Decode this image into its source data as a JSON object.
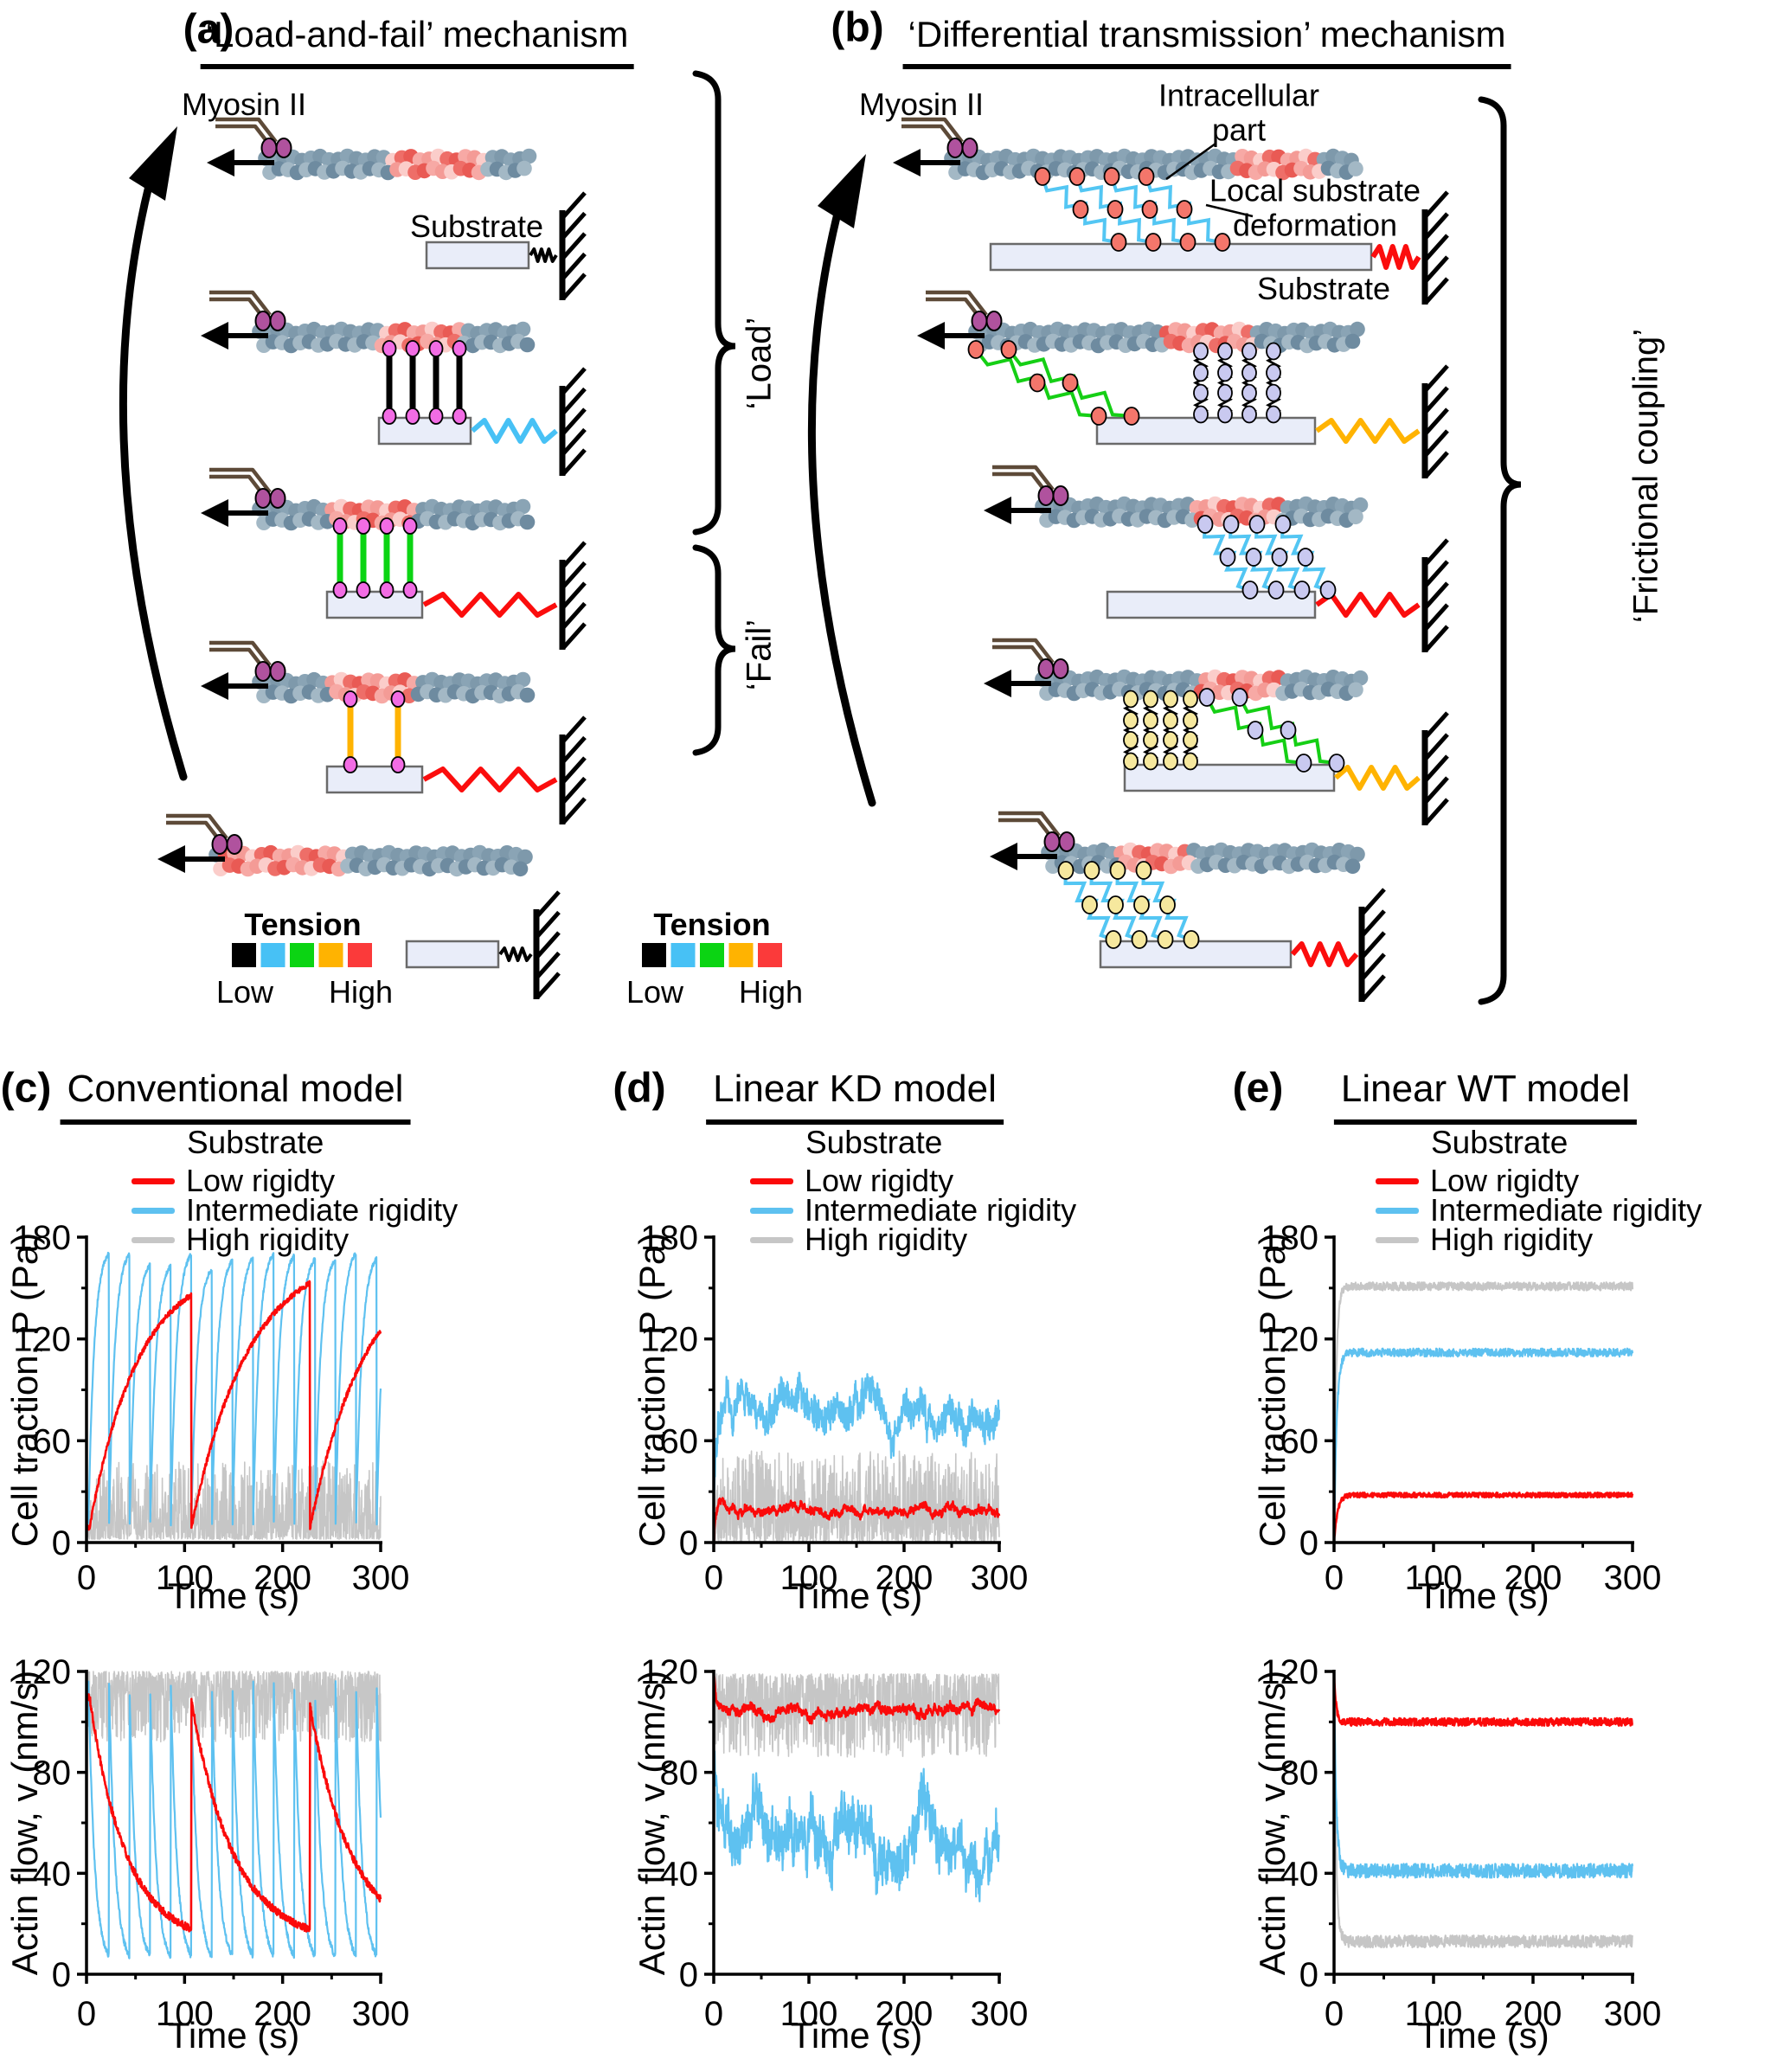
{
  "diagram": {
    "panel_a": {
      "label": "(a)",
      "title": "‘Load-and-fail’ mechanism",
      "myosin_label": "Myosin II",
      "substrate_label": "Substrate",
      "load_brace_label": "‘Load’",
      "fail_brace_label": "‘Fail’",
      "tension_legend": {
        "title": "Tension",
        "low_label": "Low",
        "high_label": "High",
        "colors": [
          "#000000",
          "#47c1f5",
          "#0bd413",
          "#ffb301",
          "#fb3a3a"
        ]
      },
      "rows": [
        {
          "name": "unloaded-substrate",
          "linker": null,
          "spring_color": "#000000",
          "spring_style": "short",
          "red_zone": [
            0.48,
            0.83
          ]
        },
        {
          "name": "engaged-low-tension",
          "linker": {
            "color": "#000000",
            "count": 4,
            "ball_color": "#f26ce4"
          },
          "spring_color": "#47c1f5",
          "spring_style": "long",
          "red_zone": [
            0.45,
            0.75
          ]
        },
        {
          "name": "loaded-high-tension",
          "linker": {
            "color": "#0bd413",
            "count": 4,
            "ball_color": "#f26ce4"
          },
          "spring_color": "#fb0d0d",
          "spring_style": "long",
          "red_zone": [
            0.26,
            0.58
          ]
        },
        {
          "name": "failing-links",
          "linker": {
            "color": "#ffb301",
            "count": 2,
            "ball_color": "#f26ce4"
          },
          "spring_color": "#fb0d0d",
          "spring_style": "long",
          "red_zone": [
            0.26,
            0.58
          ]
        },
        {
          "name": "detached-reset",
          "linker": null,
          "spring_color": "#000000",
          "spring_style": "short",
          "red_zone": [
            0.01,
            0.42
          ]
        }
      ]
    },
    "panel_b": {
      "label": "(b)",
      "title": "‘Differential transmission’ mechanism",
      "myosin_label": "Myosin II",
      "intracellular_label": "Intracellular part",
      "deformation_label": "Local substrate deformation",
      "substrate_label": "Substrate",
      "friction_brace_label": "‘Frictional coupling’",
      "tension_legend": {
        "title": "Tension",
        "low_label": "Low",
        "high_label": "High",
        "colors": [
          "#000000",
          "#47c1f5",
          "#0bd413",
          "#ffb301",
          "#fb3a3a"
        ]
      },
      "rows": [
        {
          "name": "row-1-local-deformation",
          "chains": [
            {
              "type": "zigzag",
              "color": "#53c6f3",
              "ball_color": "#f4766b"
            }
          ],
          "spring_color": "#fb0d0d",
          "red_zone": [
            0.7,
            0.91
          ]
        },
        {
          "name": "row-2-mixed-green-coil",
          "chains": [
            {
              "type": "zigzag",
              "color": "#15cf15",
              "ball_color": "#f4766b"
            },
            {
              "type": "coil",
              "color": "#000000",
              "ball_color": "#c9c9f0"
            }
          ],
          "spring_color": "#ffb301",
          "red_zone": [
            0.49,
            0.73
          ]
        },
        {
          "name": "row-3-blue-chains",
          "chains": [
            {
              "type": "zigzag",
              "color": "#53c6f3",
              "ball_color": "#c9c9f0"
            }
          ],
          "spring_color": "#fb0d0d",
          "red_zone": [
            0.47,
            0.75
          ]
        },
        {
          "name": "row-4-mixed-coil-green",
          "chains": [
            {
              "type": "coil",
              "color": "#000000",
              "ball_color": "#f6e89e"
            },
            {
              "type": "zigzag",
              "color": "#15cf15",
              "ball_color": "#c9c9f0"
            }
          ],
          "spring_color": "#ffb301",
          "red_zone": [
            0.49,
            0.75
          ]
        },
        {
          "name": "row-5-relaxed",
          "chains": [
            {
              "type": "zigzag",
              "color": "#53c6f3",
              "ball_color": "#f6e89e"
            }
          ],
          "spring_color": "#fb0d0d",
          "red_zone": [
            0.22,
            0.46
          ]
        }
      ]
    }
  },
  "charts": {
    "panel_c": {
      "label": "(c)",
      "title": "Conventional model",
      "legend": {
        "title": "Substrate",
        "entries": [
          {
            "label": "Low rigidty",
            "color": "#fb0a0a"
          },
          {
            "label": "Intermediate rigidity",
            "color": "#5ec1f0"
          },
          {
            "label": "High rigidity",
            "color": "#c6c6c6"
          }
        ]
      }
    },
    "panel_d": {
      "label": "(d)",
      "title": "Linear KD model",
      "legend": {
        "title": "Substrate",
        "entries": [
          {
            "label": "Low rigidty",
            "color": "#fb0a0a"
          },
          {
            "label": "Intermediate rigidity",
            "color": "#5ec1f0"
          },
          {
            "label": "High rigidity",
            "color": "#c6c6c6"
          }
        ]
      }
    },
    "panel_e": {
      "label": "(e)",
      "title": "Linear WT model",
      "legend": {
        "title": "Substrate",
        "entries": [
          {
            "label": "Low rigidty",
            "color": "#fb0a0a"
          },
          {
            "label": "Intermediate rigidity",
            "color": "#5ec1f0"
          },
          {
            "label": "High rigidity",
            "color": "#c6c6c6"
          }
        ]
      }
    }
  },
  "chart_data": [
    {
      "id": "c-traction",
      "panel": "c",
      "slot": "traction",
      "type": "line",
      "xlabel": "Time (s)",
      "ylabel": "Cell traction, P (Pa)",
      "xlim": [
        0,
        300
      ],
      "ylim": [
        0,
        180
      ],
      "xticks": [
        0,
        100,
        200,
        300
      ],
      "yticks": [
        0,
        60,
        120,
        180
      ],
      "xminor": [
        50,
        150,
        250
      ],
      "yminor": [
        30,
        90,
        150
      ],
      "series": [
        {
          "name": "High rigidity",
          "color": "#c6c6c6",
          "width": 1.6,
          "seed": 101,
          "pattern": "spiky",
          "params": {
            "base": 2,
            "amp": 46,
            "pow": 2.2,
            "dir": "up",
            "ramp": 4
          },
          "summary": "dense noisy spikes between ~0 and ~48 Pa for all 300 s"
        },
        {
          "name": "Intermediate rigidity",
          "color": "#5ec1f0",
          "width": 2.2,
          "seed": 102,
          "pattern": "sawtooth",
          "params": {
            "mode": "rise",
            "breaks": [
              2
            ],
            "period": 21,
            "peak": 166,
            "jit": 6,
            "valley": 11,
            "k": 3.6,
            "hf": 1.3
          },
          "summary": "load-and-fail cycles ~21 s period, concave rise from ~11 to peaks ~160-168 Pa then abrupt drop"
        },
        {
          "name": "Low rigidty",
          "color": "#fb0a0a",
          "width": 2.6,
          "seed": 103,
          "pattern": "sawtooth",
          "params": {
            "mode": "rise",
            "breaks": [
              3,
              107,
              228,
              349
            ],
            "period": 116,
            "peaks": [
              146,
              153,
              152
            ],
            "valley": 9,
            "k": 2.1,
            "hf": 1.5
          },
          "summary": "slow load-and-fail cycles, drops at ~107 s and ~228 s, peaks ~145-152 Pa, ends ~125 Pa at 300 s"
        }
      ]
    },
    {
      "id": "c-flow",
      "panel": "c",
      "slot": "flow",
      "type": "line",
      "xlabel": "Time (s)",
      "ylabel": "Actin flow, v (nm/s)",
      "xlim": [
        0,
        300
      ],
      "ylim": [
        0,
        120
      ],
      "xticks": [
        0,
        100,
        200,
        300
      ],
      "yticks": [
        0,
        40,
        80,
        120
      ],
      "xminor": [
        50,
        150,
        250
      ],
      "yminor": [
        20,
        60,
        100
      ],
      "series": [
        {
          "name": "High rigidity",
          "color": "#c6c6c6",
          "width": 1.6,
          "seed": 104,
          "pattern": "spiky",
          "params": {
            "base": 120,
            "amp": 28,
            "pow": 1.7,
            "dir": "down"
          },
          "summary": "dense noisy band hugging 120 nm/s with downward spikes to ~92"
        },
        {
          "name": "Intermediate rigidity",
          "color": "#5ec1f0",
          "width": 2.2,
          "seed": 105,
          "pattern": "sawtooth",
          "params": {
            "mode": "decay",
            "breaks": [
              2
            ],
            "period": 21,
            "start": 112,
            "jit": 4,
            "floor": 3,
            "k": 3.3,
            "hf": 1.3
          },
          "summary": "sawtooth decays ~21 s period from ~112 down to ~3-8 nm/s, then resets"
        },
        {
          "name": "Low rigidty",
          "color": "#fb0a0a",
          "width": 2.6,
          "seed": 106,
          "pattern": "sawtooth",
          "params": {
            "mode": "decay",
            "breaks": [
              3,
              107,
              228,
              349
            ],
            "period": 116,
            "starts": [
              110,
              108,
              106
            ],
            "start": 110,
            "floor": 12,
            "k": 2.8,
            "hf": 1.5
          },
          "summary": "slow decays from ~110 to ~15 nm/s with resets at ~107 s and ~228 s"
        }
      ]
    },
    {
      "id": "d-traction",
      "panel": "d",
      "slot": "traction",
      "type": "line",
      "xlabel": "Time (s)",
      "ylabel": "Cell traction, P (Pa)",
      "xlim": [
        0,
        300
      ],
      "ylim": [
        0,
        180
      ],
      "xticks": [
        0,
        100,
        200,
        300
      ],
      "yticks": [
        0,
        60,
        120,
        180
      ],
      "xminor": [
        50,
        150,
        250
      ],
      "yminor": [
        30,
        90,
        150
      ],
      "series": [
        {
          "name": "High rigidity",
          "color": "#c6c6c6",
          "width": 1.6,
          "seed": 201,
          "pattern": "spiky",
          "params": {
            "base": 1,
            "amp": 53,
            "pow": 1.9,
            "dir": "up",
            "ramp": 3
          },
          "summary": "noisy spikes 0-55 Pa, mean ~22 Pa"
        },
        {
          "name": "Intermediate rigidity",
          "color": "#5ec1f0",
          "width": 2.2,
          "seed": 202,
          "pattern": "band",
          "params": {
            "mean": 80,
            "walk": 7,
            "rev": 0.03,
            "hf": 8,
            "min": 45,
            "max": 114,
            "start0": 25,
            "tau": 2
          },
          "summary": "fluctuates ~55-113 Pa around mean ~80 Pa"
        },
        {
          "name": "Low rigidty",
          "color": "#fb0a0a",
          "width": 2.6,
          "seed": 203,
          "pattern": "band",
          "params": {
            "mean": 19,
            "walk": 2.2,
            "rev": 0.03,
            "hf": 1.6,
            "min": 11,
            "max": 27,
            "start0": 0,
            "tau": 2
          },
          "summary": "nearly flat ~15-25 Pa, mean ~19 Pa"
        }
      ]
    },
    {
      "id": "d-flow",
      "panel": "d",
      "slot": "flow",
      "type": "line",
      "xlabel": "Time (s)",
      "ylabel": "Actin flow, v (nm/s)",
      "xlim": [
        0,
        300
      ],
      "ylim": [
        0,
        120
      ],
      "xticks": [
        0,
        100,
        200,
        300
      ],
      "yticks": [
        0,
        40,
        80,
        120
      ],
      "xminor": [
        50,
        150,
        250
      ],
      "yminor": [
        20,
        60,
        100
      ],
      "series": [
        {
          "name": "High rigidity",
          "color": "#c6c6c6",
          "width": 1.6,
          "seed": 204,
          "pattern": "spiky",
          "params": {
            "base": 119,
            "amp": 33,
            "pow": 1.8,
            "dir": "down"
          },
          "summary": "noisy band ~85-120 nm/s"
        },
        {
          "name": "Intermediate rigidity",
          "color": "#5ec1f0",
          "width": 2.2,
          "seed": 205,
          "pattern": "band",
          "params": {
            "mean": 55,
            "walk": 7,
            "rev": 0.03,
            "hf": 8,
            "min": 24,
            "max": 88,
            "start0": 95,
            "tau": 3
          },
          "summary": "fluctuates ~25-85 nm/s around mean ~55 nm/s"
        },
        {
          "name": "Low rigidty",
          "color": "#fb0a0a",
          "width": 2.6,
          "seed": 206,
          "pattern": "band",
          "params": {
            "mean": 104,
            "walk": 1.6,
            "rev": 0.03,
            "hf": 1.2,
            "min": 97,
            "max": 110,
            "start0": 120,
            "tau": 2
          },
          "summary": "nearly flat ~100-108 nm/s, mean ~104 nm/s"
        }
      ]
    },
    {
      "id": "e-traction",
      "panel": "e",
      "slot": "traction",
      "type": "line",
      "xlabel": "Time (s)",
      "ylabel": "Cell traction, P (Pa)",
      "xlim": [
        0,
        300
      ],
      "ylim": [
        0,
        180
      ],
      "xticks": [
        0,
        100,
        200,
        300
      ],
      "yticks": [
        0,
        60,
        120,
        180
      ],
      "xminor": [
        50,
        150,
        250
      ],
      "yminor": [
        30,
        90,
        150
      ],
      "series": [
        {
          "name": "High rigidity",
          "color": "#c6c6c6",
          "width": 2.2,
          "seed": 301,
          "pattern": "relax",
          "params": {
            "plateau": 151,
            "start": 0,
            "tau": 2.1,
            "hf": 2.4
          },
          "summary": "rapid rise from 0 to steady plateau ~150 Pa"
        },
        {
          "name": "Intermediate rigidity",
          "color": "#5ec1f0",
          "width": 2.2,
          "seed": 302,
          "pattern": "relax",
          "params": {
            "plateau": 112,
            "start": 0,
            "tau": 2.7,
            "hf": 2.4
          },
          "summary": "rapid rise from 0 to steady plateau ~113 Pa"
        },
        {
          "name": "Low rigidty",
          "color": "#fb0a0a",
          "width": 2.6,
          "seed": 303,
          "pattern": "relax",
          "params": {
            "plateau": 28,
            "start": 0,
            "tau": 3.4,
            "hf": 1.4
          },
          "summary": "rapid rise from 0 to steady plateau ~28 Pa"
        }
      ]
    },
    {
      "id": "e-flow",
      "panel": "e",
      "slot": "flow",
      "type": "line",
      "xlabel": "Time (s)",
      "ylabel": "Actin flow, v (nm/s)",
      "xlim": [
        0,
        300
      ],
      "ylim": [
        0,
        120
      ],
      "xticks": [
        0,
        100,
        200,
        300
      ],
      "yticks": [
        0,
        40,
        80,
        120
      ],
      "xminor": [
        50,
        150,
        250
      ],
      "yminor": [
        20,
        60,
        100
      ],
      "series": [
        {
          "name": "High rigidity",
          "color": "#c6c6c6",
          "width": 2.2,
          "seed": 304,
          "pattern": "relax",
          "params": {
            "plateau": 13,
            "start": 120,
            "tau": 2.0,
            "hf": 2.4
          },
          "summary": "fast decay from 120 to steady ~13 nm/s"
        },
        {
          "name": "Intermediate rigidity",
          "color": "#5ec1f0",
          "width": 2.2,
          "seed": 305,
          "pattern": "relax",
          "params": {
            "plateau": 41,
            "start": 120,
            "tau": 2.2,
            "hf": 2.8
          },
          "summary": "fast decay from 120 to steady ~40 nm/s"
        },
        {
          "name": "Low rigidty",
          "color": "#fb0a0a",
          "width": 2.6,
          "seed": 306,
          "pattern": "relax",
          "params": {
            "plateau": 100,
            "start": 120,
            "tau": 2.0,
            "hf": 1.5
          },
          "summary": "fast decay from 120 to steady ~100 nm/s"
        }
      ]
    }
  ]
}
